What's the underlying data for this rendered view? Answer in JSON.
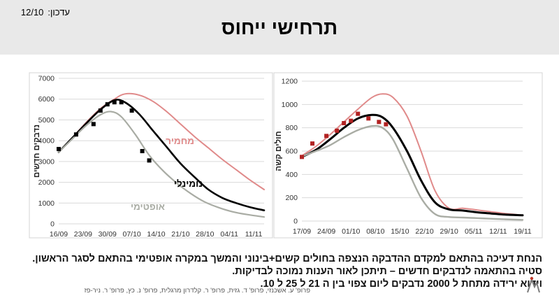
{
  "header": {
    "updated_label": "עדכון:",
    "updated_date": "12/10",
    "title": "תרחישי ייחוס"
  },
  "chart_data": [
    {
      "type": "line",
      "ylabel": "נדבקים חדשים",
      "ylim": [
        0,
        7000
      ],
      "yticks": [
        0,
        1000,
        2000,
        3000,
        4000,
        5000,
        6000,
        7000
      ],
      "x_axis_type": "date",
      "x_ticks": [
        "16/09",
        "23/09",
        "30/09",
        "07/10",
        "14/10",
        "21/10",
        "28/10",
        "04/11",
        "11/11"
      ],
      "xlim": [
        "16/09",
        "14/11"
      ],
      "grid": "horizontal",
      "series": [
        {
          "name": "מחמיר",
          "style": "line",
          "color": "#e08a8a",
          "points": [
            [
              "16/09",
              3450
            ],
            [
              "20/09",
              4150
            ],
            [
              "24/09",
              4900
            ],
            [
              "28/09",
              5550
            ],
            [
              "02/10",
              6000
            ],
            [
              "05/10",
              6250
            ],
            [
              "09/10",
              6200
            ],
            [
              "13/10",
              5900
            ],
            [
              "17/10",
              5400
            ],
            [
              "21/10",
              4800
            ],
            [
              "25/10",
              4200
            ],
            [
              "29/10",
              3650
            ],
            [
              "02/11",
              3100
            ],
            [
              "06/11",
              2600
            ],
            [
              "10/11",
              2100
            ],
            [
              "14/11",
              1650
            ]
          ]
        },
        {
          "name": "נומינלי",
          "style": "line",
          "color": "#000000",
          "points": [
            [
              "16/09",
              3450
            ],
            [
              "20/09",
              4150
            ],
            [
              "24/09",
              4850
            ],
            [
              "28/09",
              5500
            ],
            [
              "02/10",
              5950
            ],
            [
              "05/10",
              5850
            ],
            [
              "09/10",
              5300
            ],
            [
              "13/10",
              4500
            ],
            [
              "17/10",
              3700
            ],
            [
              "21/10",
              2900
            ],
            [
              "25/10",
              2250
            ],
            [
              "29/10",
              1650
            ],
            [
              "02/11",
              1250
            ],
            [
              "06/11",
              1000
            ],
            [
              "10/11",
              800
            ],
            [
              "14/11",
              650
            ]
          ]
        },
        {
          "name": "אופטימי",
          "style": "line",
          "color": "#a9aca4",
          "points": [
            [
              "16/09",
              3450
            ],
            [
              "20/09",
              4100
            ],
            [
              "24/09",
              4750
            ],
            [
              "28/09",
              5250
            ],
            [
              "01/10",
              5400
            ],
            [
              "04/10",
              5150
            ],
            [
              "08/10",
              4300
            ],
            [
              "12/10",
              3300
            ],
            [
              "16/10",
              2550
            ],
            [
              "20/10",
              1950
            ],
            [
              "24/10",
              1450
            ],
            [
              "28/10",
              1050
            ],
            [
              "01/11",
              780
            ],
            [
              "05/11",
              580
            ],
            [
              "09/11",
              450
            ],
            [
              "14/11",
              330
            ]
          ]
        },
        {
          "name": "",
          "style": "markers",
          "marker": "square",
          "color": "#000000",
          "points": [
            [
              "16/09",
              3600
            ],
            [
              "21/09",
              4300
            ],
            [
              "26/09",
              4800
            ],
            [
              "28/09",
              5450
            ],
            [
              "30/09",
              5750
            ],
            [
              "02/10",
              5850
            ],
            [
              "04/10",
              5850
            ],
            [
              "07/10",
              5450
            ],
            [
              "10/10",
              3500
            ],
            [
              "12/10",
              3050
            ]
          ]
        }
      ]
    },
    {
      "type": "line",
      "ylabel": "חולים קשה",
      "ylim": [
        0,
        1200
      ],
      "yticks": [
        0,
        200,
        400,
        600,
        800,
        1000,
        1200
      ],
      "x_axis_type": "date",
      "x_ticks": [
        "17/09",
        "24/09",
        "01/10",
        "08/10",
        "15/10",
        "22/10",
        "29/10",
        "05/11",
        "12/11",
        "19/11"
      ],
      "xlim": [
        "17/09",
        "19/11"
      ],
      "grid": "horizontal",
      "series": [
        {
          "name": "",
          "style": "line",
          "color": "#e08a8a",
          "points": [
            [
              "17/09",
              560
            ],
            [
              "21/09",
              640
            ],
            [
              "25/09",
              740
            ],
            [
              "29/09",
              850
            ],
            [
              "03/10",
              960
            ],
            [
              "07/10",
              1060
            ],
            [
              "10/10",
              1090
            ],
            [
              "13/10",
              1060
            ],
            [
              "17/10",
              900
            ],
            [
              "21/10",
              600
            ],
            [
              "25/10",
              260
            ],
            [
              "29/10",
              110
            ],
            [
              "02/11",
              110
            ],
            [
              "06/11",
              95
            ],
            [
              "10/11",
              80
            ],
            [
              "14/11",
              65
            ],
            [
              "19/11",
              50
            ]
          ]
        },
        {
          "name": "",
          "style": "line",
          "color": "#000000",
          "points": [
            [
              "17/09",
              550
            ],
            [
              "21/09",
              610
            ],
            [
              "25/09",
              700
            ],
            [
              "29/09",
              800
            ],
            [
              "03/10",
              880
            ],
            [
              "07/10",
              910
            ],
            [
              "10/10",
              890
            ],
            [
              "13/10",
              800
            ],
            [
              "17/10",
              600
            ],
            [
              "21/10",
              350
            ],
            [
              "25/10",
              160
            ],
            [
              "29/10",
              100
            ],
            [
              "02/11",
              90
            ],
            [
              "06/11",
              75
            ],
            [
              "10/11",
              65
            ],
            [
              "14/11",
              55
            ],
            [
              "19/11",
              50
            ]
          ]
        },
        {
          "name": "",
          "style": "line",
          "color": "#a9aca4",
          "points": [
            [
              "17/09",
              555
            ],
            [
              "21/09",
              600
            ],
            [
              "25/09",
              650
            ],
            [
              "29/09",
              720
            ],
            [
              "03/10",
              780
            ],
            [
              "07/10",
              815
            ],
            [
              "10/10",
              800
            ],
            [
              "13/10",
              700
            ],
            [
              "17/10",
              450
            ],
            [
              "21/10",
              200
            ],
            [
              "25/10",
              60
            ],
            [
              "29/10",
              35
            ],
            [
              "02/11",
              30
            ],
            [
              "06/11",
              25
            ],
            [
              "10/11",
              20
            ],
            [
              "14/11",
              15
            ],
            [
              "19/11",
              10
            ]
          ]
        },
        {
          "name": "",
          "style": "markers",
          "marker": "square",
          "color": "#b22222",
          "points": [
            [
              "17/09",
              550
            ],
            [
              "20/09",
              665
            ],
            [
              "24/09",
              730
            ],
            [
              "27/09",
              775
            ],
            [
              "29/09",
              840
            ],
            [
              "01/10",
              860
            ],
            [
              "03/10",
              920
            ],
            [
              "06/10",
              880
            ],
            [
              "09/10",
              850
            ],
            [
              "11/10",
              830
            ]
          ]
        }
      ]
    }
  ],
  "notes": [
    "הנחת דעיכה בהתאם למקדם ההדבקה הנצפה בחולים קשים+בינוני והמשך במקרה אופטימי בהתאם לסגר הראשון.",
    "סטיה בהתאמה לנדבקים חדשים – תיתכן לאור הענות נמוכה לבדיקות.",
    "וידוא ירידה מתחת ל 2000 נדבקים ליום צפוי בין ה 21 ל 25 ל 10."
  ],
  "credits": "פרופ' ע. אשכנזי, פרופ' ד. גזית, פרופ' ר. קלדרון מרגלית, פרופ' נ. כץ, פרופ' ר. ניר-פז",
  "colors": {
    "severe": "#e08a8a",
    "nominal": "#000000",
    "optimistic": "#a9aca4",
    "markers_left": "#000000",
    "markers_right": "#b22222",
    "grid": "#d9d9d9",
    "header_bg": "#e9e9e9"
  }
}
